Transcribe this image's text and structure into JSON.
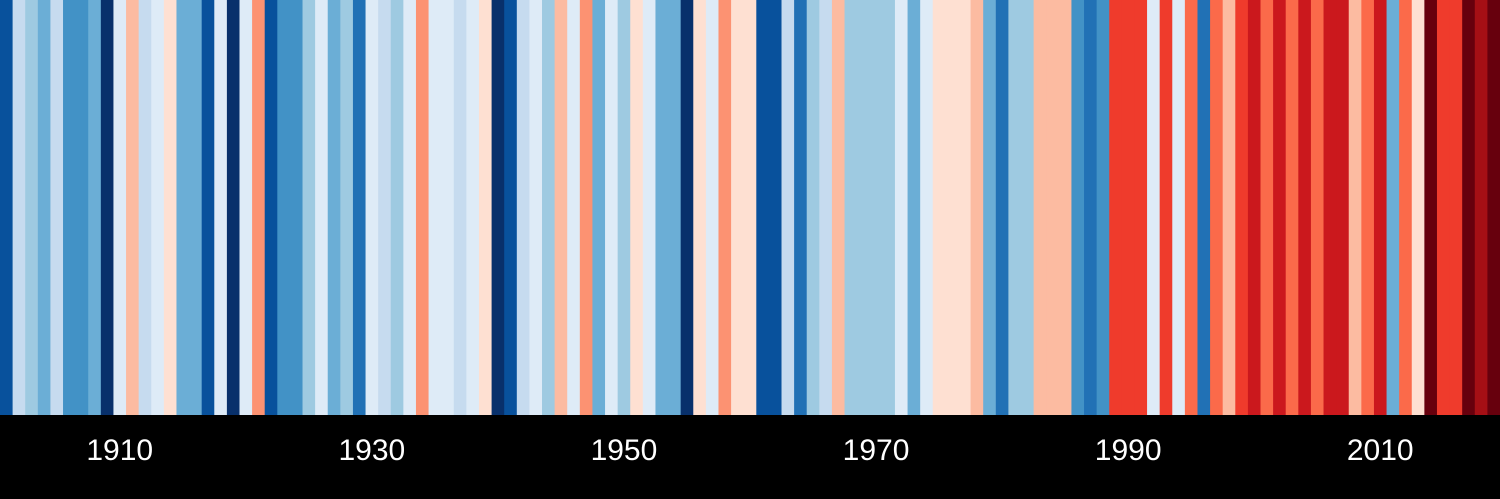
{
  "chart_data": {
    "type": "heatmap",
    "title": "",
    "xlabel": "",
    "ylabel": "",
    "x_start": 1901,
    "x_end": 2019,
    "xlim": [
      1901,
      2019
    ],
    "grid": false,
    "legend": "none",
    "background_color": "#000000",
    "tick_color": "#ffffff",
    "palette": {
      "-7": "#08306b",
      "-6": "#08519c",
      "-5": "#2171b5",
      "-4": "#4292c6",
      "-3": "#6baed6",
      "-2": "#9ecae1",
      "-1": "#c6dbef",
      "0": "#deebf7",
      "1": "#fee0d2",
      "2": "#fcbba1",
      "3": "#fc9272",
      "4": "#fb6a4a",
      "5": "#ef3b2c",
      "6": "#cb181d",
      "7": "#a50f15",
      "8": "#67000d"
    },
    "ticks": [
      {
        "year": 1910,
        "label": "1910"
      },
      {
        "year": 1930,
        "label": "1930"
      },
      {
        "year": 1950,
        "label": "1950"
      },
      {
        "year": 1970,
        "label": "1970"
      },
      {
        "year": 1990,
        "label": "1990"
      },
      {
        "year": 2010,
        "label": "2010"
      }
    ],
    "years": [
      1901,
      1902,
      1903,
      1904,
      1905,
      1906,
      1907,
      1908,
      1909,
      1910,
      1911,
      1912,
      1913,
      1914,
      1915,
      1916,
      1917,
      1918,
      1919,
      1920,
      1921,
      1922,
      1923,
      1924,
      1925,
      1926,
      1927,
      1928,
      1929,
      1930,
      1931,
      1932,
      1933,
      1934,
      1935,
      1936,
      1937,
      1938,
      1939,
      1940,
      1941,
      1942,
      1943,
      1944,
      1945,
      1946,
      1947,
      1948,
      1949,
      1950,
      1951,
      1952,
      1953,
      1954,
      1955,
      1956,
      1957,
      1958,
      1959,
      1960,
      1961,
      1962,
      1963,
      1964,
      1965,
      1966,
      1967,
      1968,
      1969,
      1970,
      1971,
      1972,
      1973,
      1974,
      1975,
      1976,
      1977,
      1978,
      1979,
      1980,
      1981,
      1982,
      1983,
      1984,
      1985,
      1986,
      1987,
      1988,
      1989,
      1990,
      1991,
      1992,
      1993,
      1994,
      1995,
      1996,
      1997,
      1998,
      1999,
      2000,
      2001,
      2002,
      2003,
      2004,
      2005,
      2006,
      2007,
      2008,
      2009,
      2010,
      2011,
      2012,
      2013,
      2014,
      2015,
      2016,
      2017,
      2018,
      2019
    ],
    "values": [
      -6,
      -1,
      -2,
      -3,
      -1,
      -4,
      -4,
      -3,
      -7,
      0,
      2,
      -1,
      0,
      1,
      -3,
      -3,
      -6,
      0,
      -7,
      0,
      3,
      -6,
      -4,
      -4,
      -2,
      0,
      -3,
      -2,
      -5,
      0,
      -1,
      -2,
      0,
      3,
      0,
      0,
      -1,
      0,
      1,
      -7,
      -6,
      -1,
      0,
      -2,
      2,
      0,
      3,
      -3,
      0,
      -2,
      1,
      0,
      -3,
      -3,
      -7,
      1,
      0,
      3,
      1,
      1,
      -6,
      -6,
      -1,
      -5,
      -2,
      -1,
      2,
      -2,
      -2,
      -2,
      -2,
      0,
      -3,
      0,
      1,
      1,
      1,
      2,
      -3,
      -5,
      -2,
      -2,
      2,
      2,
      2,
      -4,
      -5,
      -4,
      5,
      5,
      5,
      0,
      5,
      0,
      4,
      -5,
      4,
      2,
      5,
      6,
      4,
      6,
      4,
      6,
      4,
      6,
      6,
      2,
      4,
      6,
      -3,
      4,
      1,
      8,
      5,
      5,
      8,
      7,
      8
    ]
  }
}
